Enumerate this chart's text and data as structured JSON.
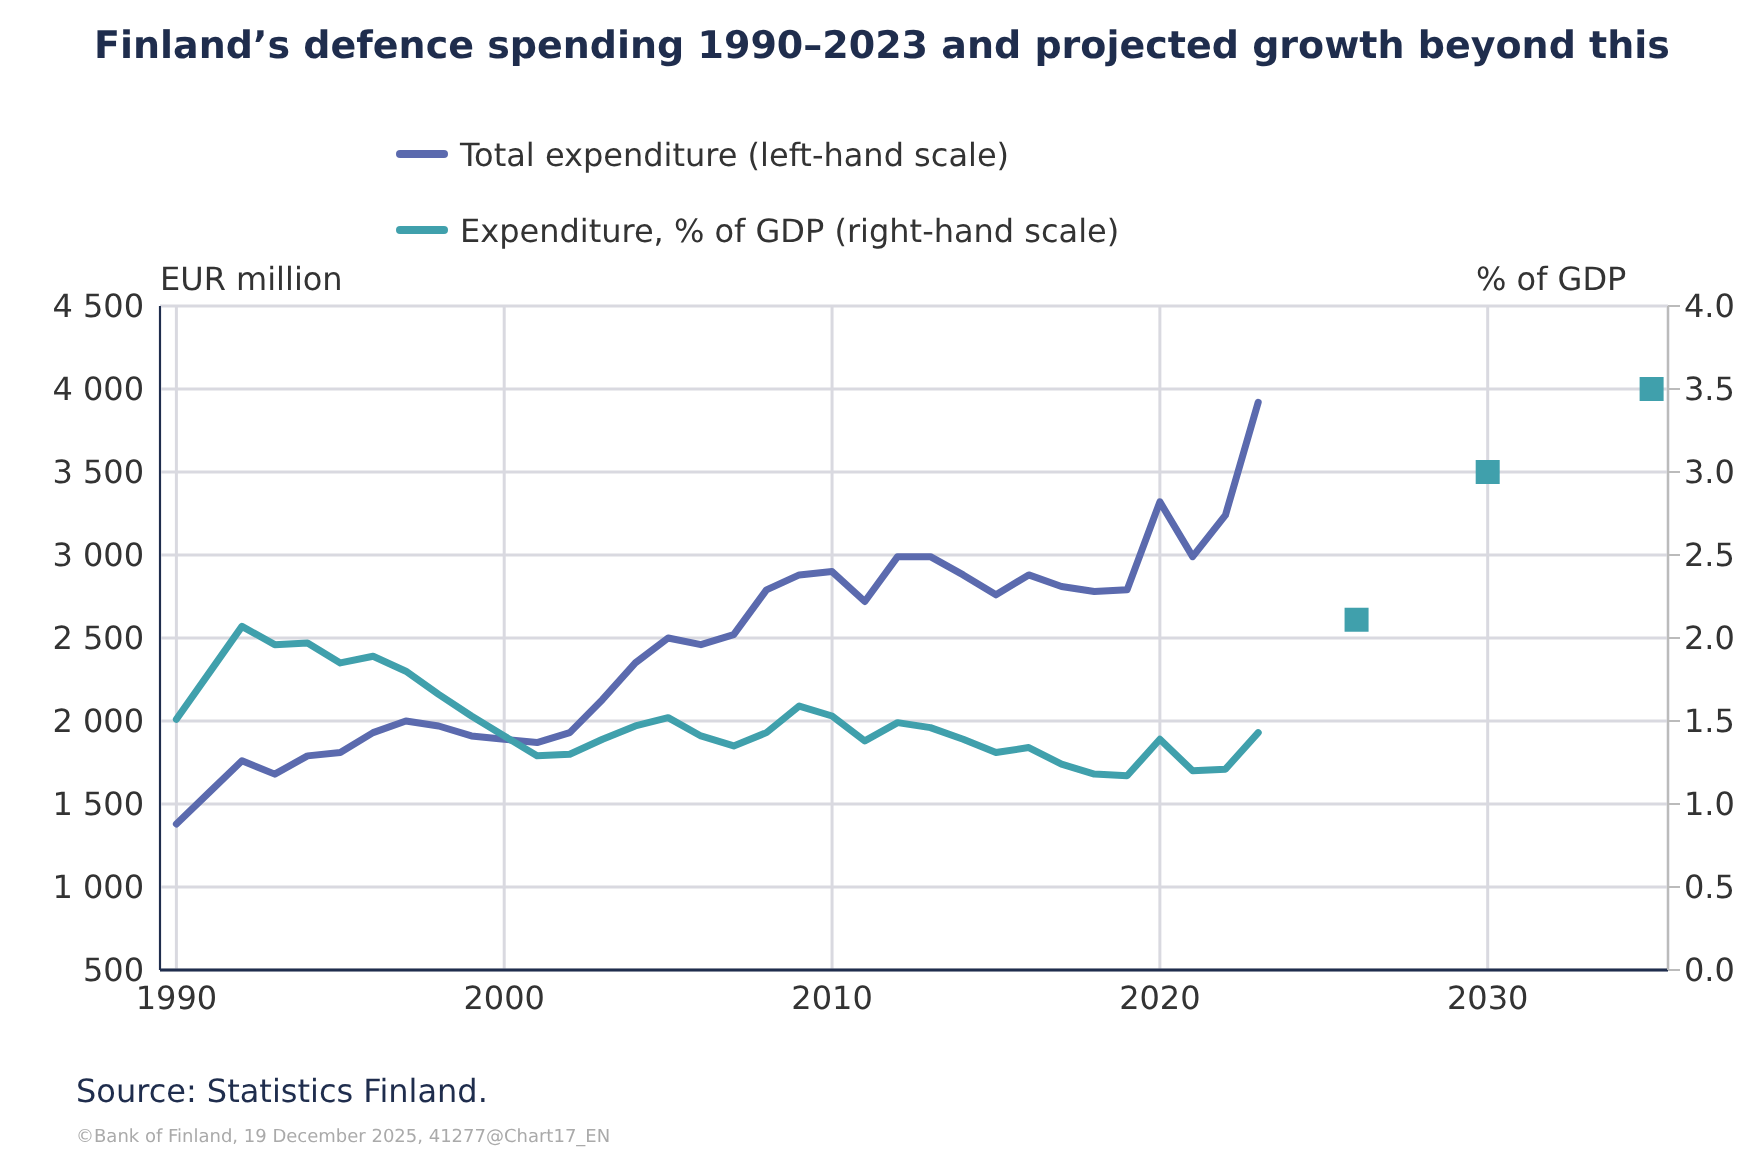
{
  "chart_data": {
    "type": "line",
    "title": "Finland’s defence spending 1990–2023 and projected growth beyond this",
    "ylabel": "EUR million",
    "y2label": "% of GDP",
    "series": [
      {
        "name": "Total expenditure (left-hand scale)",
        "color": "#5b6aae",
        "axis": "y",
        "x": [
          1990,
          1991,
          1992,
          1993,
          1994,
          1995,
          1996,
          1997,
          1998,
          1999,
          2000,
          2001,
          2002,
          2003,
          2004,
          2005,
          2006,
          2007,
          2008,
          2009,
          2010,
          2011,
          2012,
          2013,
          2014,
          2015,
          2016,
          2017,
          2018,
          2019,
          2020,
          2021,
          2022,
          2023
        ],
        "values": [
          1380,
          1570,
          1760,
          1680,
          1790,
          1810,
          1930,
          2000,
          1970,
          1910,
          1890,
          1870,
          1930,
          2130,
          2350,
          2500,
          2460,
          2520,
          2790,
          2880,
          2900,
          2720,
          2990,
          2990,
          2880,
          2760,
          2880,
          2810,
          2780,
          2790,
          3320,
          2990,
          3240,
          3920
        ]
      },
      {
        "name": "Expenditure, % of GDP (right-hand scale)",
        "color": "#40a0ac",
        "axis": "y2",
        "x": [
          1990,
          1991,
          1992,
          1993,
          1994,
          1995,
          1996,
          1997,
          1998,
          1999,
          2000,
          2001,
          2002,
          2003,
          2004,
          2005,
          2006,
          2007,
          2008,
          2009,
          2010,
          2011,
          2012,
          2013,
          2014,
          2015,
          2016,
          2017,
          2018,
          2019,
          2020,
          2021,
          2022,
          2023
        ],
        "values": [
          1.51,
          1.79,
          2.07,
          1.96,
          1.97,
          1.85,
          1.89,
          1.8,
          1.66,
          1.53,
          1.41,
          1.29,
          1.3,
          1.39,
          1.47,
          1.52,
          1.41,
          1.35,
          1.43,
          1.59,
          1.53,
          1.38,
          1.49,
          1.46,
          1.39,
          1.31,
          1.34,
          1.24,
          1.18,
          1.17,
          1.39,
          1.2,
          1.21,
          1.43
        ]
      },
      {
        "type": "scatter",
        "color": "#40a0ac",
        "axis": "y2",
        "marker": "square",
        "x": [
          2026,
          2030,
          2035
        ],
        "values": [
          2.11,
          3.0,
          3.5
        ]
      }
    ],
    "xlim": [
      1989.5,
      2035.5
    ],
    "xticks": [
      1990,
      2000,
      2010,
      2020,
      2030
    ],
    "ylim": [
      500,
      4500
    ],
    "yticks": [
      500,
      {
        "value": 1000,
        "label": "1 000"
      },
      {
        "value": 1500,
        "label": "1 500"
      },
      {
        "value": 2000,
        "label": "2 000"
      },
      {
        "value": 2500,
        "label": "2 500"
      },
      {
        "value": 3000,
        "label": "3 000"
      },
      {
        "value": 3500,
        "label": "3 500"
      },
      {
        "value": 4000,
        "label": "4 000"
      },
      {
        "value": 4500,
        "label": "4 500"
      }
    ],
    "y2lim": [
      0,
      4
    ],
    "y2ticks": [
      {
        "value": 0,
        "label": "0.0"
      },
      {
        "value": 0.5,
        "label": "0.5"
      },
      {
        "value": 1,
        "label": "1.0"
      },
      {
        "value": 1.5,
        "label": "1.5"
      },
      {
        "value": 2,
        "label": "2.0"
      },
      {
        "value": 2.5,
        "label": "2.5"
      },
      {
        "value": 3,
        "label": "3.0"
      },
      {
        "value": 3.5,
        "label": "3.5"
      },
      {
        "value": 4,
        "label": "4.0"
      }
    ],
    "grid": true,
    "legend": "top",
    "marker": "none",
    "line_style": "solid",
    "annotations": [
      "Source: Statistics Finland.",
      "©Bank of Finland, 19 December 2025, 41277@Chart17_EN"
    ]
  }
}
